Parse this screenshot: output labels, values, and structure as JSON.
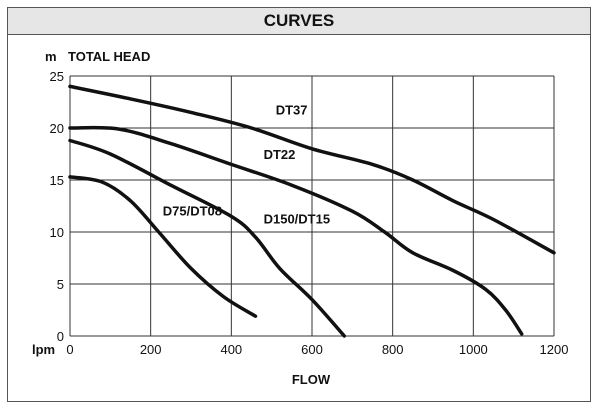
{
  "header": {
    "title": "CURVES"
  },
  "chart_data": {
    "type": "line",
    "y_unit": "m",
    "ylabel": "TOTAL HEAD",
    "x_unit": "lpm",
    "xlabel": "FLOW",
    "xlim": [
      0,
      1200
    ],
    "ylim": [
      0,
      25
    ],
    "x_ticks": [
      0,
      200,
      400,
      600,
      800,
      1000,
      1200
    ],
    "y_ticks": [
      0,
      5,
      10,
      15,
      20,
      25
    ],
    "grid": true,
    "series": [
      {
        "name": "DT37",
        "points": [
          [
            0,
            24
          ],
          [
            150,
            22.8
          ],
          [
            300,
            21.5
          ],
          [
            450,
            20
          ],
          [
            600,
            18
          ],
          [
            750,
            16.5
          ],
          [
            850,
            15
          ],
          [
            950,
            13
          ],
          [
            1050,
            11.2
          ],
          [
            1200,
            8
          ]
        ],
        "label_at": [
          510,
          21.3
        ]
      },
      {
        "name": "DT22",
        "points": [
          [
            0,
            20
          ],
          [
            120,
            19.9
          ],
          [
            250,
            18.5
          ],
          [
            400,
            16.5
          ],
          [
            550,
            14.5
          ],
          [
            700,
            12
          ],
          [
            780,
            10
          ],
          [
            850,
            8
          ],
          [
            950,
            6.3
          ],
          [
            1030,
            4.5
          ],
          [
            1080,
            2.5
          ],
          [
            1120,
            0.2
          ]
        ],
        "label_at": [
          480,
          17
        ]
      },
      {
        "name": "D150/DT15",
        "points": [
          [
            0,
            18.8
          ],
          [
            100,
            17.5
          ],
          [
            250,
            14.5
          ],
          [
            400,
            11.5
          ],
          [
            460,
            9.5
          ],
          [
            520,
            6.5
          ],
          [
            600,
            3.5
          ],
          [
            680,
            0
          ]
        ],
        "label_at": [
          480,
          10.8
        ]
      },
      {
        "name": "D75/DT08",
        "points": [
          [
            0,
            15.3
          ],
          [
            80,
            14.8
          ],
          [
            150,
            13
          ],
          [
            220,
            10
          ],
          [
            300,
            6.5
          ],
          [
            380,
            3.8
          ],
          [
            460,
            1.9
          ]
        ],
        "label_at": [
          230,
          11.6
        ]
      }
    ]
  }
}
